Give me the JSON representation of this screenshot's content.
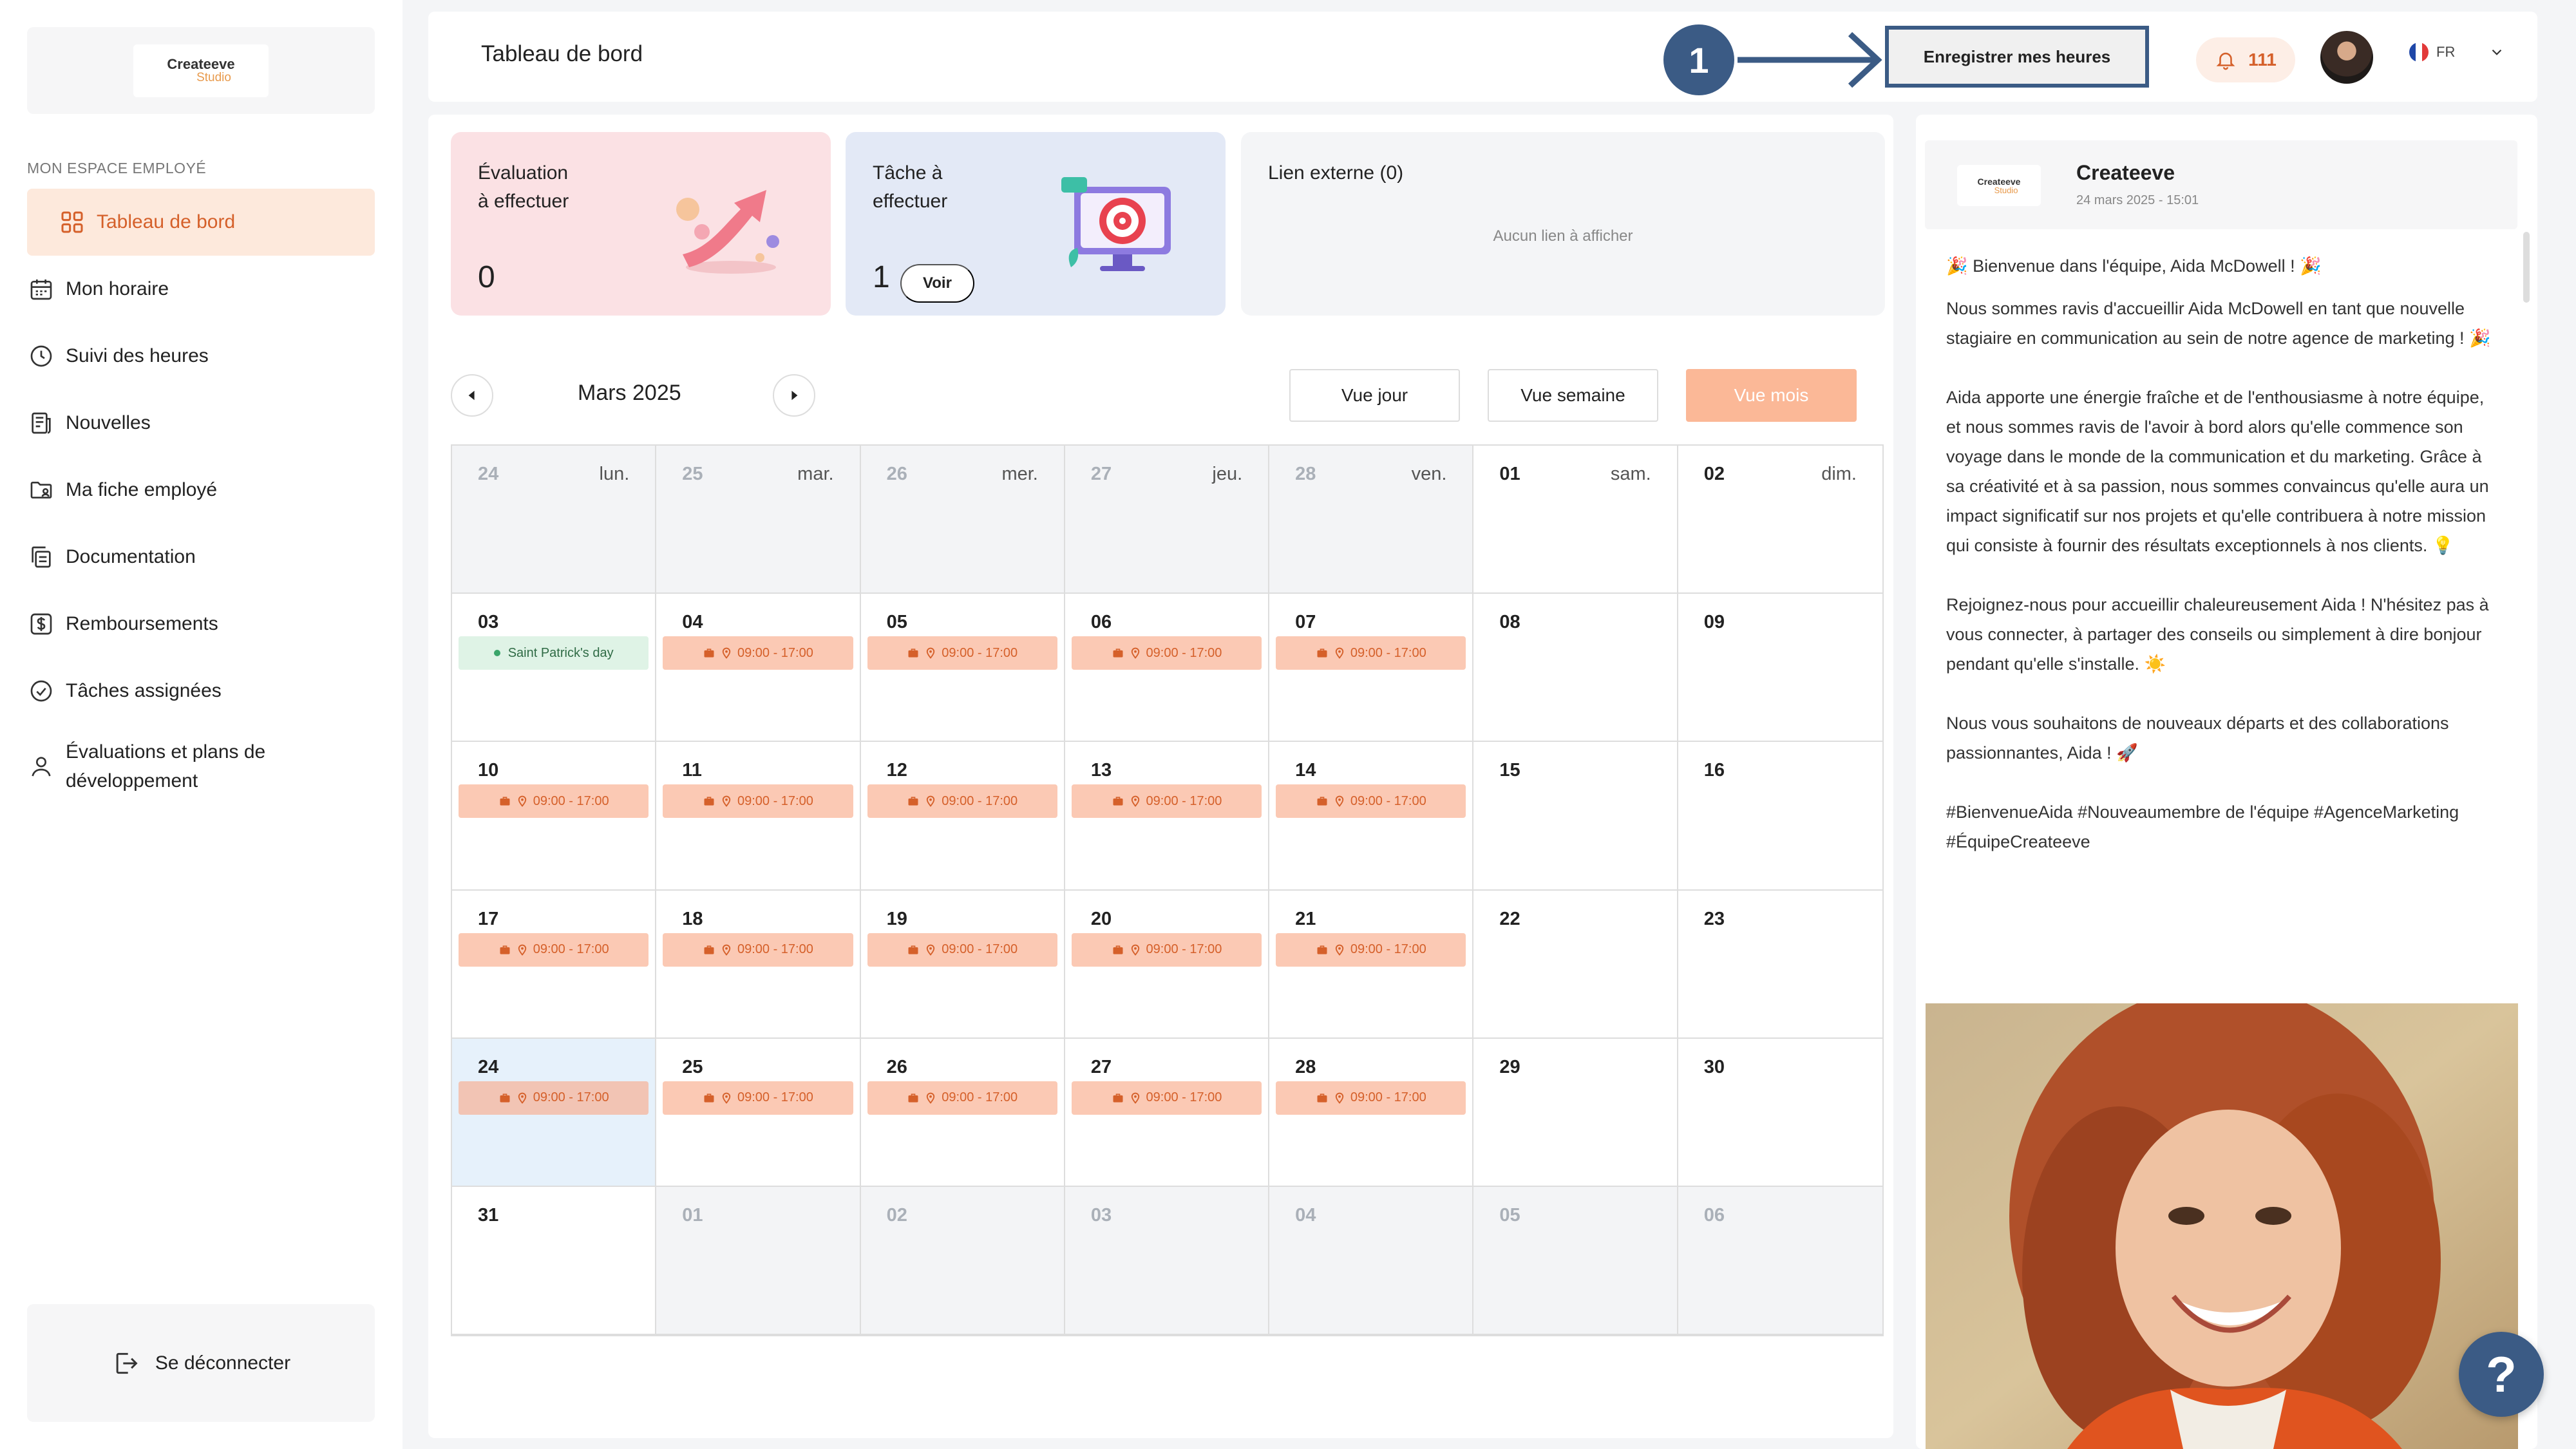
{
  "brand": {
    "name": "Createeve",
    "sub": "Studio"
  },
  "sidebar": {
    "section_label": "MON ESPACE EMPLOYÉ",
    "items": [
      {
        "label": "Tableau de bord"
      },
      {
        "label": "Mon horaire"
      },
      {
        "label": "Suivi des heures"
      },
      {
        "label": "Nouvelles"
      },
      {
        "label": "Ma fiche employé"
      },
      {
        "label": "Documentation"
      },
      {
        "label": "Remboursements"
      },
      {
        "label": "Tâches assignées"
      },
      {
        "label": "Évaluations et plans de développement"
      }
    ],
    "logout": "Se déconnecter"
  },
  "header": {
    "title": "Tableau de bord",
    "step_badge": "1",
    "register_hours": "Enregistrer mes heures",
    "notification_count": "111",
    "language": "FR"
  },
  "cards": {
    "evaluation": {
      "title_1": "Évaluation",
      "title_2": "à effectuer",
      "count": "0"
    },
    "task": {
      "title_1": "Tâche à",
      "title_2": "effectuer",
      "count": "1",
      "button": "Voir"
    },
    "external_link": {
      "title": "Lien externe (0)",
      "empty": "Aucun lien à afficher"
    }
  },
  "calendar": {
    "month": "Mars 2025",
    "views": {
      "day": "Vue jour",
      "week": "Vue semaine",
      "month": "Vue mois"
    },
    "shift_time": "09:00 - 17:00",
    "day_names": [
      "lun.",
      "mar.",
      "mer.",
      "jeu.",
      "ven.",
      "sam.",
      "dim."
    ],
    "weeks": [
      [
        {
          "d": "24",
          "m": 1
        },
        {
          "d": "25",
          "m": 1
        },
        {
          "d": "26",
          "m": 1
        },
        {
          "d": "27",
          "m": 1
        },
        {
          "d": "28",
          "m": 1
        },
        {
          "d": "01"
        },
        {
          "d": "02"
        }
      ],
      [
        {
          "d": "03",
          "holiday": "Saint Patrick's day"
        },
        {
          "d": "04",
          "s": 1
        },
        {
          "d": "05",
          "s": 1
        },
        {
          "d": "06",
          "s": 1
        },
        {
          "d": "07",
          "s": 1
        },
        {
          "d": "08"
        },
        {
          "d": "09"
        }
      ],
      [
        {
          "d": "10",
          "s": 1
        },
        {
          "d": "11",
          "s": 1
        },
        {
          "d": "12",
          "s": 1
        },
        {
          "d": "13",
          "s": 1
        },
        {
          "d": "14",
          "s": 1
        },
        {
          "d": "15"
        },
        {
          "d": "16"
        }
      ],
      [
        {
          "d": "17",
          "s": 1
        },
        {
          "d": "18",
          "s": 1
        },
        {
          "d": "19",
          "s": 1
        },
        {
          "d": "20",
          "s": 1
        },
        {
          "d": "21",
          "s": 1
        },
        {
          "d": "22"
        },
        {
          "d": "23"
        }
      ],
      [
        {
          "d": "24",
          "s": 1,
          "today": 1
        },
        {
          "d": "25",
          "s": 1
        },
        {
          "d": "26",
          "s": 1
        },
        {
          "d": "27",
          "s": 1
        },
        {
          "d": "28",
          "s": 1
        },
        {
          "d": "29"
        },
        {
          "d": "30"
        }
      ],
      [
        {
          "d": "31"
        },
        {
          "d": "01",
          "m": 1
        },
        {
          "d": "02",
          "m": 1
        },
        {
          "d": "03",
          "m": 1
        },
        {
          "d": "04",
          "m": 1
        },
        {
          "d": "05",
          "m": 1
        },
        {
          "d": "06",
          "m": 1
        }
      ]
    ]
  },
  "feed": {
    "author": "Createeve",
    "date": "24 mars 2025 - 15:01",
    "paragraphs": [
      "🎉 Bienvenue dans l'équipe, Aida McDowell ! 🎉",
      "Nous sommes ravis d'accueillir Aida McDowell en tant que nouvelle stagiaire en communication au sein de notre agence de marketing ! 🎉",
      "Aida apporte une énergie fraîche et de l'enthousiasme à notre équipe, et nous sommes ravis de l'avoir à bord alors qu'elle commence son voyage dans le monde de la communication et du marketing. Grâce à sa créativité et à sa passion, nous sommes convaincus qu'elle aura un impact significatif sur nos projets et qu'elle contribuera à notre mission qui consiste à fournir des résultats exceptionnels à nos clients. 💡",
      "Rejoignez-nous pour accueillir chaleureusement Aida ! N'hésitez pas à vous connecter, à partager des conseils ou simplement à dire bonjour pendant qu'elle s'installe. ☀️",
      "Nous vous souhaitons de nouveaux départs et des collaborations passionnantes, Aida ! 🚀",
      "#BienvenueAida #Nouveaumembre de l'équipe #AgenceMarketing #ÉquipeCreateeve"
    ]
  },
  "help": "?"
}
